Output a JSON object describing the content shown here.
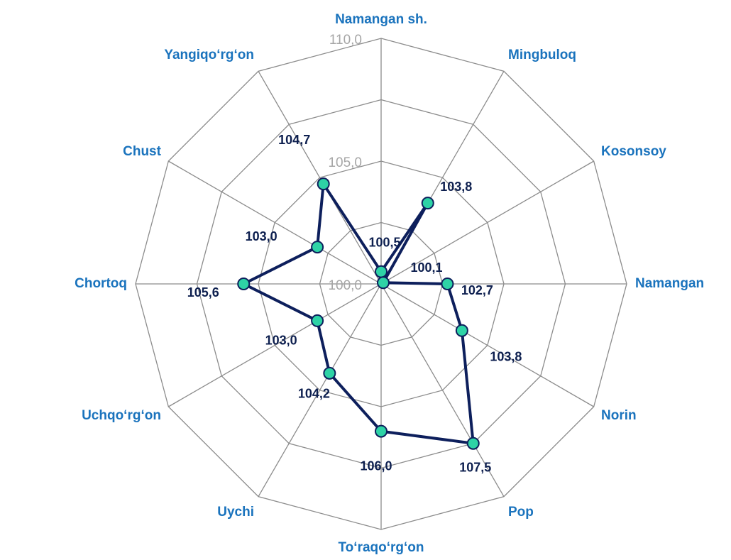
{
  "chart_data": {
    "type": "radar",
    "categories": [
      "Namangan sh.",
      "Mingbuloq",
      "Kosonsoy",
      "Namangan",
      "Norin",
      "Pop",
      "To‘raqo‘rg‘on",
      "Uychi",
      "Uchqo‘rg‘on",
      "Chortoq",
      "Chust",
      "Yangiqo‘rg‘on"
    ],
    "series": [
      {
        "name": "Namangan",
        "color": "#0d1f5c",
        "marker_color": "#2ed3a6",
        "values": [
          100.5,
          103.8,
          100.1,
          102.7,
          103.8,
          107.5,
          106.0,
          104.2,
          103.0,
          105.6,
          103.0,
          104.7
        ],
        "value_labels": [
          "100,5",
          "103,8",
          "100,1",
          "102,7",
          "103,8",
          "107,5",
          "106,0",
          "104,2",
          "103,0",
          "105,6",
          "103,0",
          "104,7"
        ]
      }
    ],
    "ylim": [
      100,
      110
    ],
    "yticks": [
      {
        "value": 100,
        "label": "100,0"
      },
      {
        "value": 105,
        "label": "105,0"
      },
      {
        "value": 110,
        "label": "110,0"
      }
    ],
    "minor_yticks": [
      102.5,
      107.5
    ],
    "grid": true
  }
}
